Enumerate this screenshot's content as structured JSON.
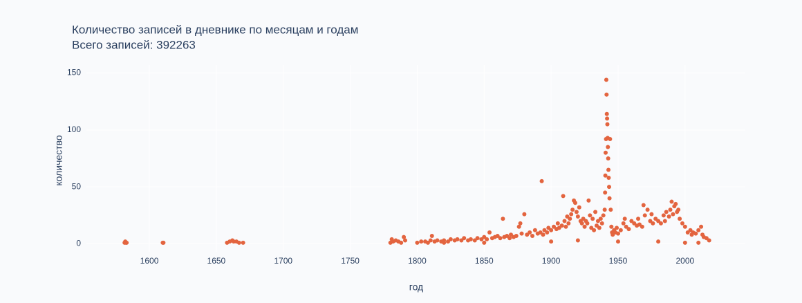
{
  "chart_data": {
    "type": "scatter",
    "title": "Количество записей в дневнике по месяцам и годам",
    "subtitle": "Всего записей: 392263",
    "x_label": "год",
    "y_label": "количество",
    "color": "#e3643f",
    "grid": true,
    "xlim": [
      1553,
      2045
    ],
    "ylim": [
      -7,
      157
    ],
    "xticks": [
      1600,
      1650,
      1700,
      1750,
      1800,
      1850,
      1900,
      1950,
      2000
    ],
    "yticks": [
      0,
      50,
      100,
      150
    ],
    "x": [
      1581.5,
      1582,
      1582.5,
      1583,
      1610,
      1610.5,
      1658,
      1660,
      1662,
      1663,
      1665,
      1667,
      1670,
      1780,
      1781,
      1782,
      1784,
      1786,
      1788,
      1790,
      1791,
      1800,
      1803,
      1806,
      1808,
      1810,
      1811,
      1813,
      1815,
      1818,
      1820,
      1823,
      1825,
      1828,
      1830,
      1833,
      1835,
      1838,
      1840,
      1843,
      1845,
      1848,
      1850,
      1852,
      1854,
      1856,
      1858,
      1860,
      1862,
      1864,
      1865,
      1867,
      1869,
      1870,
      1872,
      1874,
      1876,
      1877,
      1878,
      1880,
      1882,
      1884,
      1886,
      1888,
      1890,
      1892,
      1893,
      1894,
      1895,
      1897,
      1898,
      1900,
      1902,
      1904,
      1905,
      1906,
      1908,
      1909,
      1910,
      1911,
      1912,
      1913,
      1914,
      1915,
      1916,
      1917,
      1918,
      1919,
      1920,
      1921,
      1922,
      1923,
      1924,
      1925,
      1926,
      1927,
      1928,
      1929,
      1930,
      1931,
      1932,
      1933,
      1934,
      1935,
      1936,
      1937,
      1938,
      1939,
      1940,
      1940.3,
      1940.5,
      1940.7,
      1941,
      1941.2,
      1941.4,
      1941.6,
      1941.8,
      1942,
      1942.2,
      1942.4,
      1942.6,
      1942.8,
      1943,
      1943.3,
      1943.6,
      1944,
      1944.5,
      1945,
      1945.5,
      1946,
      1947,
      1948,
      1949,
      1950,
      1952,
      1954,
      1955,
      1956,
      1958,
      1960,
      1962,
      1964,
      1965,
      1966,
      1968,
      1969,
      1970,
      1972,
      1974,
      1975,
      1976,
      1978,
      1980,
      1982,
      1984,
      1985,
      1986,
      1988,
      1989,
      1990,
      1991,
      1992,
      1993,
      1994,
      1995,
      1996,
      1998,
      2000,
      2002,
      2004,
      2005,
      2006,
      2008,
      2010,
      2012,
      2013,
      2014,
      2016,
      2018,
      1820,
      1850,
      1900,
      1920,
      1950,
      1980,
      2000,
      2010
    ],
    "values": [
      1,
      2,
      1,
      1,
      1,
      1,
      1,
      2,
      3,
      2,
      2,
      1,
      1,
      1,
      4,
      2,
      3,
      2,
      1,
      6,
      3,
      1,
      2,
      2,
      1,
      3,
      7,
      2,
      3,
      2,
      3,
      2,
      4,
      3,
      4,
      3,
      5,
      3,
      4,
      3,
      5,
      4,
      6,
      4,
      10,
      5,
      6,
      7,
      5,
      22,
      6,
      7,
      5,
      8,
      6,
      7,
      15,
      18,
      9,
      26,
      8,
      10,
      7,
      12,
      9,
      10,
      55,
      8,
      12,
      10,
      14,
      12,
      15,
      13,
      18,
      14,
      16,
      42,
      20,
      15,
      24,
      18,
      22,
      26,
      30,
      38,
      36,
      28,
      24,
      32,
      20,
      18,
      22,
      15,
      20,
      18,
      38,
      25,
      14,
      22,
      12,
      28,
      16,
      20,
      14,
      22,
      18,
      25,
      30,
      45,
      60,
      80,
      92,
      144,
      131,
      114,
      110,
      105,
      93,
      85,
      75,
      65,
      58,
      50,
      40,
      92,
      30,
      15,
      10,
      8,
      12,
      10,
      14,
      9,
      12,
      18,
      22,
      15,
      13,
      20,
      18,
      16,
      22,
      17,
      15,
      34,
      25,
      30,
      20,
      26,
      18,
      22,
      20,
      18,
      25,
      20,
      28,
      24,
      30,
      37,
      26,
      33,
      35,
      28,
      30,
      22,
      18,
      15,
      10,
      12,
      8,
      10,
      9,
      12,
      15,
      8,
      6,
      5,
      3,
      1,
      1,
      2,
      3,
      2,
      2,
      1,
      1
    ]
  }
}
